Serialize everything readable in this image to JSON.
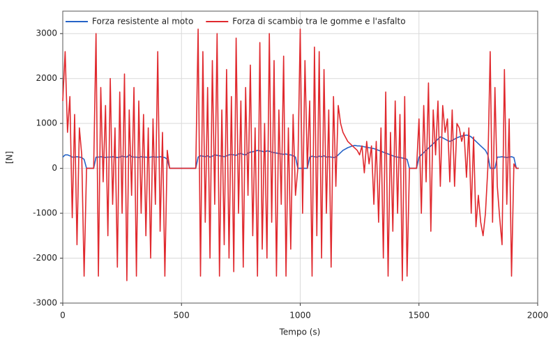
{
  "chart_data": {
    "type": "line",
    "x_label": "Tempo (s)",
    "y_label": "[N]",
    "xlim": [
      0,
      2000
    ],
    "ylim": [
      -3000,
      3500
    ],
    "xticks": [
      0,
      500,
      1000,
      1500,
      2000
    ],
    "yticks": [
      -3000,
      -2000,
      -1000,
      0,
      1000,
      2000,
      3000
    ],
    "grid": true,
    "legend": "top-left",
    "x": [
      0,
      10,
      20,
      30,
      40,
      50,
      60,
      70,
      80,
      90,
      100,
      110,
      120,
      130,
      140,
      150,
      160,
      170,
      180,
      190,
      200,
      210,
      220,
      230,
      240,
      250,
      260,
      270,
      280,
      290,
      300,
      310,
      320,
      330,
      340,
      350,
      360,
      370,
      380,
      390,
      400,
      410,
      420,
      430,
      440,
      450,
      460,
      470,
      480,
      490,
      500,
      510,
      520,
      530,
      540,
      550,
      560,
      570,
      580,
      590,
      600,
      610,
      620,
      630,
      640,
      650,
      660,
      670,
      680,
      690,
      700,
      710,
      720,
      730,
      740,
      750,
      760,
      770,
      780,
      790,
      800,
      810,
      820,
      830,
      840,
      850,
      860,
      870,
      880,
      890,
      900,
      910,
      920,
      930,
      940,
      950,
      960,
      970,
      980,
      990,
      1000,
      1010,
      1020,
      1030,
      1040,
      1050,
      1060,
      1070,
      1080,
      1090,
      1100,
      1110,
      1120,
      1130,
      1140,
      1150,
      1160,
      1170,
      1180,
      1190,
      1200,
      1210,
      1220,
      1230,
      1240,
      1250,
      1260,
      1270,
      1280,
      1290,
      1300,
      1310,
      1320,
      1330,
      1340,
      1350,
      1360,
      1370,
      1380,
      1390,
      1400,
      1410,
      1420,
      1430,
      1440,
      1450,
      1460,
      1470,
      1480,
      1490,
      1500,
      1510,
      1520,
      1530,
      1540,
      1550,
      1560,
      1570,
      1580,
      1590,
      1600,
      1610,
      1620,
      1630,
      1640,
      1650,
      1660,
      1670,
      1680,
      1690,
      1700,
      1710,
      1720,
      1730,
      1740,
      1750,
      1760,
      1770,
      1780,
      1790,
      1800,
      1810,
      1820,
      1830,
      1840,
      1850,
      1860,
      1870,
      1880,
      1890,
      1900,
      1910,
      1920
    ],
    "series": [
      {
        "name": "Forza resistente al moto",
        "color": "#2563c7",
        "values": [
          250,
          300,
          300,
          280,
          250,
          250,
          260,
          250,
          240,
          200,
          0,
          0,
          0,
          0,
          250,
          250,
          260,
          250,
          240,
          250,
          250,
          260,
          250,
          240,
          250,
          270,
          260,
          250,
          300,
          260,
          250,
          250,
          240,
          260,
          250,
          250,
          240,
          250,
          260,
          250,
          250,
          260,
          250,
          240,
          200,
          0,
          0,
          0,
          0,
          0,
          0,
          0,
          0,
          0,
          0,
          0,
          0,
          250,
          280,
          270,
          260,
          280,
          250,
          270,
          300,
          290,
          280,
          270,
          260,
          280,
          300,
          310,
          300,
          290,
          320,
          330,
          310,
          300,
          340,
          360,
          370,
          380,
          400,
          390,
          380,
          360,
          390,
          380,
          360,
          350,
          340,
          330,
          320,
          310,
          320,
          300,
          300,
          280,
          250,
          0,
          0,
          0,
          0,
          0,
          250,
          270,
          260,
          250,
          270,
          260,
          280,
          250,
          260,
          250,
          240,
          250,
          300,
          350,
          400,
          430,
          460,
          480,
          500,
          510,
          500,
          500,
          490,
          480,
          470,
          460,
          450,
          440,
          420,
          400,
          380,
          360,
          340,
          320,
          300,
          280,
          260,
          250,
          240,
          230,
          220,
          200,
          0,
          0,
          0,
          0,
          250,
          300,
          350,
          400,
          450,
          500,
          550,
          600,
          650,
          700,
          680,
          650,
          620,
          600,
          620,
          650,
          680,
          700,
          720,
          730,
          740,
          730,
          700,
          650,
          600,
          550,
          500,
          450,
          400,
          300,
          0,
          0,
          0,
          250,
          250,
          260,
          250,
          240,
          250,
          260,
          240,
          0,
          0
        ]
      },
      {
        "name": "Forza di scambio tra le gomme e l'asfalto",
        "color": "#e0292e",
        "values": [
          1500,
          2600,
          800,
          1600,
          -1100,
          1200,
          -1700,
          900,
          300,
          -2400,
          0,
          0,
          0,
          0,
          3000,
          -2400,
          1800,
          -300,
          1400,
          -1500,
          2000,
          -800,
          900,
          -2200,
          1700,
          -1000,
          2100,
          -2500,
          1300,
          -600,
          1800,
          -2400,
          1500,
          -1000,
          1200,
          -1500,
          900,
          -2000,
          1100,
          -800,
          2600,
          -1400,
          800,
          -2400,
          400,
          0,
          0,
          0,
          0,
          0,
          0,
          0,
          0,
          0,
          0,
          0,
          0,
          3100,
          -2400,
          2600,
          -1200,
          1800,
          -2000,
          2400,
          -800,
          3000,
          -2400,
          1300,
          -1700,
          2200,
          -2000,
          1600,
          -2300,
          2900,
          -1000,
          1500,
          -2200,
          1800,
          -600,
          2300,
          -1500,
          900,
          -2400,
          2800,
          -1800,
          1000,
          -2000,
          3000,
          -1200,
          2400,
          -2400,
          1300,
          -800,
          2500,
          -2400,
          900,
          -1800,
          1200,
          -600,
          0,
          3100,
          -1000,
          2400,
          0,
          1500,
          -2400,
          2700,
          -1500,
          2600,
          -2000,
          2200,
          -1000,
          1300,
          -2200,
          1600,
          -400,
          1400,
          1000,
          800,
          700,
          600,
          550,
          500,
          450,
          400,
          300,
          500,
          -100,
          600,
          100,
          500,
          -800,
          600,
          -1200,
          900,
          -2000,
          1700,
          -2400,
          800,
          -1400,
          1500,
          -1000,
          1200,
          -2500,
          1600,
          -2400,
          0,
          0,
          0,
          0,
          1100,
          -1000,
          1400,
          -300,
          1900,
          -1400,
          1300,
          300,
          1500,
          -400,
          1400,
          800,
          1100,
          -300,
          1300,
          -400,
          1000,
          900,
          600,
          800,
          -200,
          900,
          -1000,
          700,
          -1300,
          -600,
          -1200,
          -1500,
          -1000,
          0,
          2600,
          -1200,
          1800,
          -400,
          -1100,
          -1700,
          2200,
          -800,
          1100,
          -2400,
          100,
          0,
          0
        ]
      }
    ]
  }
}
